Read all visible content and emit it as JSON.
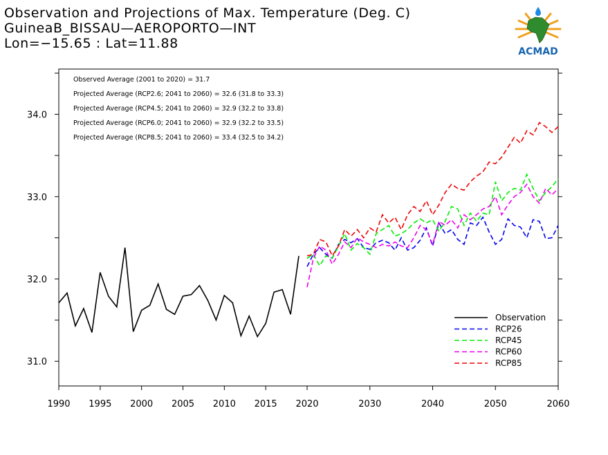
{
  "header": {
    "title": "Observation and Projections of Max. Temperature (Deg. C)",
    "station": "GuineaB_BISSAU—AEROPORTO—INT",
    "location": "Lon=−15.65 : Lat=11.88"
  },
  "logo": {
    "text": "ACMAD",
    "icon": "africa-logo-icon"
  },
  "stats": [
    "Observed Average (2001 to 2020) = 31.7",
    "Projected Average (RCP2.6; 2041 to 2060) = 32.6 (31.8 to 33.3)",
    "Projected Average (RCP4.5; 2041 to 2060) = 32.9 (32.2 to 33.8)",
    "Projected Average (RCP6.0; 2041 to 2060) = 32.9 (32.2 to 33.5)",
    "Projected Average (RCP8.5; 2041 to 2060) = 33.4 (32.5 to 34.2)"
  ],
  "chart_data": {
    "type": "line",
    "xlim": [
      1990,
      2060
    ],
    "ylim": [
      30.7,
      34.55
    ],
    "x_ticks": [
      {
        "value": 1990,
        "label": "1990"
      },
      {
        "value": 1995,
        "label": "1995"
      },
      {
        "value": 2000,
        "label": "2000"
      },
      {
        "value": 2005,
        "label": "2005"
      },
      {
        "value": 2010,
        "label": "2010"
      },
      {
        "value": 2015,
        "label": "2015"
      },
      {
        "value": 2020,
        "label": "2020"
      },
      {
        "value": 2030,
        "label": "2030"
      },
      {
        "value": 2040,
        "label": "2040"
      },
      {
        "value": 2050,
        "label": "2050"
      },
      {
        "value": 2060,
        "label": "2060"
      }
    ],
    "y_ticks": [
      {
        "value": 31.0,
        "label": "31.0"
      },
      {
        "value": 32.0,
        "label": "32.0"
      },
      {
        "value": 33.0,
        "label": "33.0"
      },
      {
        "value": 34.0,
        "label": "34.0"
      }
    ],
    "legend_position": "bottom-right",
    "series": [
      {
        "name": "Observation",
        "color": "#000000",
        "dashed": false,
        "x_start": 1990,
        "values": [
          31.71,
          31.83,
          31.43,
          31.64,
          31.35,
          32.08,
          31.79,
          31.66,
          32.38,
          31.36,
          31.62,
          31.68,
          31.94,
          31.63,
          31.57,
          31.79,
          31.81,
          31.92,
          31.74,
          31.5,
          31.8,
          31.71,
          31.31,
          31.55,
          31.3,
          31.46,
          31.84,
          31.87,
          31.57,
          32.28
        ]
      },
      {
        "name": "RCP26",
        "color": "#0000ee",
        "dashed": true,
        "x_start": 2020,
        "values": [
          32.15,
          32.3,
          32.38,
          32.3,
          32.25,
          32.42,
          32.48,
          32.44,
          32.49,
          32.38,
          32.36,
          32.44,
          32.47,
          32.44,
          32.35,
          32.5,
          32.35,
          32.38,
          32.47,
          32.62,
          32.4,
          32.68,
          32.55,
          32.6,
          32.48,
          32.42,
          32.68,
          32.65,
          32.75,
          32.57,
          32.42,
          32.48,
          32.73,
          32.65,
          32.63,
          32.5,
          32.72,
          32.7,
          32.49,
          32.5,
          32.65
        ]
      },
      {
        "name": "RCP45",
        "color": "#00ee00",
        "dashed": true,
        "x_start": 2020,
        "values": [
          32.25,
          32.3,
          32.16,
          32.28,
          32.25,
          32.4,
          32.55,
          32.35,
          32.43,
          32.38,
          32.3,
          32.55,
          32.6,
          32.65,
          32.52,
          32.55,
          32.6,
          32.68,
          32.73,
          32.68,
          32.72,
          32.58,
          32.7,
          32.88,
          32.85,
          32.65,
          32.8,
          32.7,
          32.8,
          32.78,
          33.18,
          32.95,
          33.05,
          33.1,
          33.08,
          33.27,
          33.1,
          32.95,
          33.05,
          33.12,
          33.22
        ]
      },
      {
        "name": "RCP60",
        "color": "#ee00ee",
        "dashed": true,
        "x_start": 2020,
        "values": [
          31.9,
          32.25,
          32.4,
          32.35,
          32.18,
          32.3,
          32.45,
          32.38,
          32.5,
          32.45,
          32.42,
          32.38,
          32.42,
          32.4,
          32.45,
          32.4,
          32.38,
          32.5,
          32.65,
          32.6,
          32.42,
          32.7,
          32.65,
          32.72,
          32.62,
          32.78,
          32.72,
          32.78,
          32.85,
          32.88,
          33.0,
          32.78,
          32.9,
          33.0,
          33.05,
          33.15,
          33.0,
          32.92,
          33.1,
          33.02,
          33.1
        ]
      },
      {
        "name": "RCP85",
        "color": "#ee0000",
        "dashed": true,
        "x_start": 2020,
        "values": [
          32.28,
          32.3,
          32.48,
          32.45,
          32.28,
          32.4,
          32.6,
          32.52,
          32.6,
          32.5,
          32.62,
          32.57,
          32.78,
          32.68,
          32.75,
          32.6,
          32.78,
          32.88,
          32.82,
          32.95,
          32.78,
          32.9,
          33.05,
          33.15,
          33.1,
          33.08,
          33.18,
          33.25,
          33.3,
          33.42,
          33.4,
          33.48,
          33.6,
          33.72,
          33.65,
          33.8,
          33.75,
          33.9,
          33.85,
          33.78,
          33.85
        ]
      }
    ]
  }
}
